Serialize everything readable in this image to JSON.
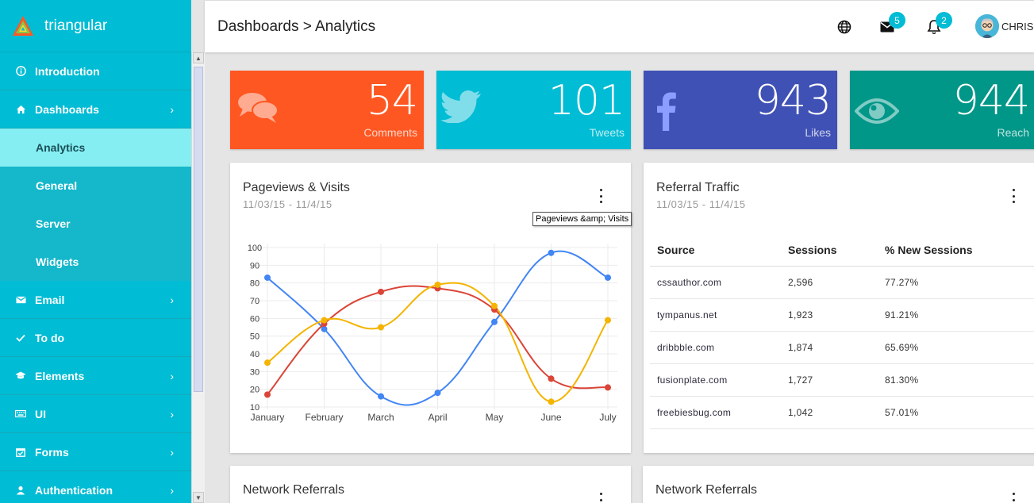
{
  "app": {
    "brand_name": "triangular"
  },
  "sidebar": {
    "items": [
      {
        "label": "Introduction",
        "icon": "info-icon"
      },
      {
        "label": "Dashboards",
        "icon": "home-icon",
        "expanded": true,
        "children": [
          "Analytics",
          "General",
          "Server",
          "Widgets"
        ],
        "active_child": "Analytics"
      },
      {
        "label": "Email",
        "icon": "mail-icon"
      },
      {
        "label": "To do",
        "icon": "check-icon"
      },
      {
        "label": "Elements",
        "icon": "graduation-cap-icon"
      },
      {
        "label": "UI",
        "icon": "keyboard-icon"
      },
      {
        "label": "Forms",
        "icon": "calendar-check-icon"
      },
      {
        "label": "Authentication",
        "icon": "user-icon"
      }
    ]
  },
  "header": {
    "breadcrumb": "Dashboards > Analytics",
    "mail_count": "5",
    "notification_count": "2",
    "user_name": "CHRIS"
  },
  "stats": [
    {
      "value": "54",
      "label": "Comments",
      "color": "#ff5722",
      "icon": "comments-icon"
    },
    {
      "value": "101",
      "label": "Tweets",
      "color": "#00bcd4",
      "icon": "twitter-icon"
    },
    {
      "value": "943",
      "label": "Likes",
      "color": "#3f51b5",
      "icon": "facebook-icon"
    },
    {
      "value": "944",
      "label": "Reach",
      "color": "#009688",
      "icon": "eye-icon"
    }
  ],
  "pageviews_panel": {
    "title": "Pageviews & Visits",
    "date_range": "11/03/15 - 11/4/15",
    "tooltip": "Pageviews &amp; Visits"
  },
  "chart_data": {
    "type": "line",
    "categories": [
      "January",
      "February",
      "March",
      "April",
      "May",
      "June",
      "July"
    ],
    "ylim": [
      10,
      100
    ],
    "yticks": [
      10,
      20,
      30,
      40,
      50,
      60,
      70,
      80,
      90,
      100
    ],
    "grid": true,
    "series": [
      {
        "color": "#4285f4",
        "values": [
          83,
          54,
          16,
          18,
          58,
          97,
          83
        ]
      },
      {
        "color": "#db4437",
        "values": [
          17,
          57,
          75,
          77,
          65,
          26,
          21
        ]
      },
      {
        "color": "#f4b400",
        "values": [
          35,
          59,
          55,
          79,
          67,
          13,
          59
        ]
      }
    ]
  },
  "referral_panel": {
    "title": "Referral Traffic",
    "date_range": "11/03/15 - 11/4/15",
    "columns": [
      "Source",
      "Sessions",
      "% New Sessions"
    ],
    "rows": [
      [
        "cssauthor.com",
        "2,596",
        "77.27%"
      ],
      [
        "tympanus.net",
        "1,923",
        "91.21%"
      ],
      [
        "dribbble.com",
        "1,874",
        "65.69%"
      ],
      [
        "fusionplate.com",
        "1,727",
        "81.30%"
      ],
      [
        "freebiesbug.com",
        "1,042",
        "57.01%"
      ]
    ]
  },
  "network_panels": [
    {
      "title": "Network Referrals"
    },
    {
      "title": "Network Referrals"
    }
  ]
}
